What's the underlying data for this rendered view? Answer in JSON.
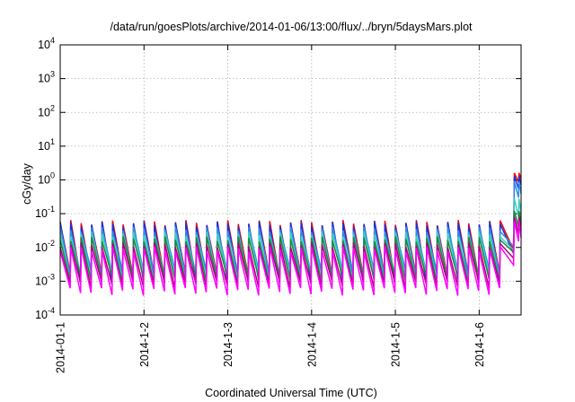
{
  "chart_data": {
    "type": "line",
    "title": "/data/run/goesPlots/archive/2014-01-06/13:00/flux/../bryn/5daysMars.plot",
    "xlabel": "Coordinated Universal Time (UTC)",
    "ylabel": "cGy/day",
    "yscale": "log",
    "ylim": [
      0.0001,
      10000
    ],
    "y_ticks": [
      {
        "base": "10",
        "exp": "-4"
      },
      {
        "base": "10",
        "exp": "-3"
      },
      {
        "base": "10",
        "exp": "-2"
      },
      {
        "base": "10",
        "exp": "-1"
      },
      {
        "base": "10",
        "exp": "0"
      },
      {
        "base": "10",
        "exp": "1"
      },
      {
        "base": "10",
        "exp": "2"
      },
      {
        "base": "10",
        "exp": "3"
      },
      {
        "base": "10",
        "exp": "4"
      }
    ],
    "x_ticks": [
      "2014-01-1",
      "2014-1-2",
      "2014-1-3",
      "2014-1-4",
      "2014-1-5",
      "2014-1-6"
    ],
    "xlim_days": [
      0,
      5.5
    ],
    "grid": true,
    "legend": "none",
    "pattern": {
      "oscillation_period_hours": 3,
      "cycles": 43,
      "regime1_end_day": 5.35,
      "regime2_start_day": 5.42,
      "step_day": 5.41
    },
    "series": [
      {
        "color": "#ff0000",
        "peak": 0.055,
        "trough": 0.0014,
        "post_peak": 1.6,
        "post_trough": 0.85
      },
      {
        "color": "#1d2fd6",
        "peak": 0.05,
        "trough": 0.0011,
        "post_peak": 1.3,
        "post_trough": 0.55
      },
      {
        "color": "#2e8ee8",
        "peak": 0.035,
        "trough": 0.0018,
        "post_peak": 0.9,
        "post_trough": 0.3
      },
      {
        "color": "#3ccfc0",
        "peak": 0.025,
        "trough": 0.0014,
        "post_peak": 0.28,
        "post_trough": 0.08
      },
      {
        "color": "#1f8a3c",
        "peak": 0.018,
        "trough": 0.0012,
        "post_peak": 0.12,
        "post_trough": 0.04
      },
      {
        "color": "#b0007a",
        "peak": 0.012,
        "trough": 0.0008,
        "post_peak": 0.08,
        "post_trough": 0.025
      },
      {
        "color": "#ff00ff",
        "peak": 0.009,
        "trough": 0.0005,
        "post_peak": 0.06,
        "post_trough": 0.015
      }
    ]
  }
}
